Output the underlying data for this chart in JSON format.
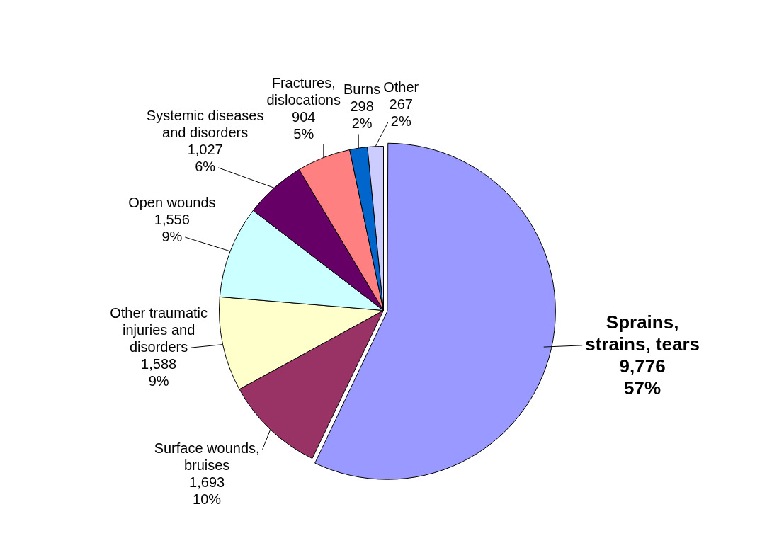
{
  "chart_data": {
    "type": "pie",
    "categories": [
      "Sprains,\nstrains, tears",
      "Surface wounds,\nbruises",
      "Other traumatic\ninjuries and\ndisorders",
      "Open wounds",
      "Systemic diseases\nand disorders",
      "Fractures,\ndislocations",
      "Burns",
      "Other"
    ],
    "values": [
      9776,
      1693,
      1588,
      1556,
      1027,
      904,
      298,
      267
    ],
    "value_labels": [
      "9,776\n57%",
      "1,693\n10%",
      "1,588\n9%",
      "1,556\n9%",
      "1,027\n6%",
      "904\n5%",
      "298\n2%",
      "267\n2%"
    ],
    "colors": [
      "#9999ff",
      "#993366",
      "#ffffcc",
      "#ccffff",
      "#660066",
      "#ff8080",
      "#0066cc",
      "#ccccff"
    ],
    "legend": false
  }
}
